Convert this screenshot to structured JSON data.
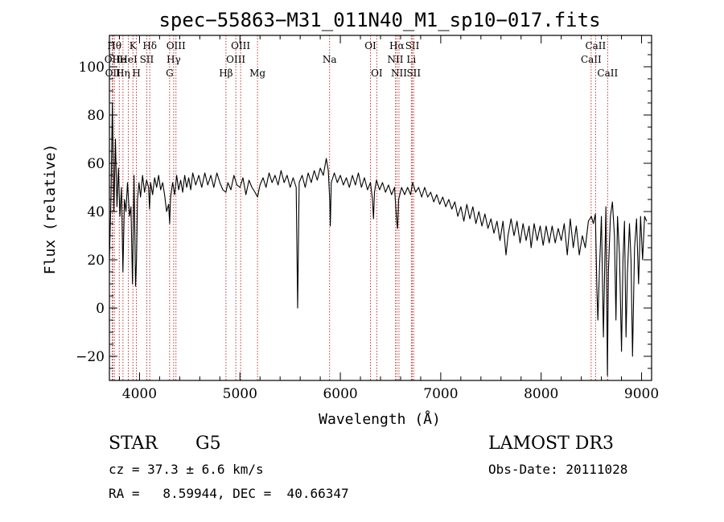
{
  "chart_data": {
    "type": "line",
    "title": "spec−55863−M31_011N40_M1_sp10−017.fits",
    "xlabel": "Wavelength (Å)",
    "ylabel": "Flux (relative)",
    "xlim": [
      3700,
      9100
    ],
    "ylim": [
      -30,
      113
    ],
    "xticks": [
      {
        "value": 4000,
        "label": "4000"
      },
      {
        "value": 5000,
        "label": "5000"
      },
      {
        "value": 6000,
        "label": "6000"
      },
      {
        "value": 7000,
        "label": "7000"
      },
      {
        "value": 8000,
        "label": "8000"
      },
      {
        "value": 9000,
        "label": "9000"
      }
    ],
    "yticks": [
      {
        "value": -20,
        "label": "−20"
      },
      {
        "value": 0,
        "label": "0"
      },
      {
        "value": 20,
        "label": "20"
      },
      {
        "value": 40,
        "label": "40"
      },
      {
        "value": 60,
        "label": "60"
      },
      {
        "value": 80,
        "label": "80"
      },
      {
        "value": 100,
        "label": "100"
      }
    ],
    "line_color": "#000000",
    "marker_color": "#b22222",
    "series": [
      {
        "points": [
          [
            3700,
            20
          ],
          [
            3715,
            45
          ],
          [
            3730,
            85
          ],
          [
            3745,
            40
          ],
          [
            3760,
            70
          ],
          [
            3775,
            42
          ],
          [
            3790,
            58
          ],
          [
            3805,
            38
          ],
          [
            3820,
            50
          ],
          [
            3835,
            15
          ],
          [
            3850,
            45
          ],
          [
            3865,
            40
          ],
          [
            3880,
            52
          ],
          [
            3900,
            38
          ],
          [
            3915,
            42
          ],
          [
            3930,
            10
          ],
          [
            3945,
            55
          ],
          [
            3960,
            9
          ],
          [
            3970,
            20
          ],
          [
            3980,
            45
          ],
          [
            3995,
            52
          ],
          [
            4010,
            46
          ],
          [
            4030,
            55
          ],
          [
            4050,
            48
          ],
          [
            4070,
            53
          ],
          [
            4090,
            50
          ],
          [
            4100,
            41
          ],
          [
            4110,
            52
          ],
          [
            4130,
            47
          ],
          [
            4150,
            54
          ],
          [
            4170,
            50
          ],
          [
            4190,
            55
          ],
          [
            4210,
            49
          ],
          [
            4230,
            52
          ],
          [
            4250,
            47
          ],
          [
            4270,
            40
          ],
          [
            4290,
            43
          ],
          [
            4300,
            35
          ],
          [
            4310,
            46
          ],
          [
            4330,
            52
          ],
          [
            4350,
            47
          ],
          [
            4370,
            55
          ],
          [
            4390,
            49
          ],
          [
            4410,
            53
          ],
          [
            4430,
            48
          ],
          [
            4450,
            55
          ],
          [
            4470,
            50
          ],
          [
            4490,
            54
          ],
          [
            4510,
            49
          ],
          [
            4530,
            56
          ],
          [
            4560,
            51
          ],
          [
            4590,
            55
          ],
          [
            4620,
            50
          ],
          [
            4650,
            56
          ],
          [
            4680,
            51
          ],
          [
            4710,
            55
          ],
          [
            4740,
            50
          ],
          [
            4770,
            56
          ],
          [
            4800,
            52
          ],
          [
            4830,
            49
          ],
          [
            4860,
            48
          ],
          [
            4880,
            52
          ],
          [
            4910,
            49
          ],
          [
            4940,
            55
          ],
          [
            4970,
            51
          ],
          [
            5000,
            50
          ],
          [
            5030,
            54
          ],
          [
            5060,
            47
          ],
          [
            5090,
            53
          ],
          [
            5120,
            50
          ],
          [
            5150,
            48
          ],
          [
            5175,
            46
          ],
          [
            5200,
            51
          ],
          [
            5230,
            54
          ],
          [
            5260,
            50
          ],
          [
            5290,
            56
          ],
          [
            5320,
            52
          ],
          [
            5350,
            55
          ],
          [
            5380,
            51
          ],
          [
            5410,
            57
          ],
          [
            5440,
            52
          ],
          [
            5470,
            55
          ],
          [
            5500,
            50
          ],
          [
            5530,
            54
          ],
          [
            5560,
            50
          ],
          [
            5575,
            0
          ],
          [
            5590,
            52
          ],
          [
            5620,
            55
          ],
          [
            5650,
            50
          ],
          [
            5680,
            56
          ],
          [
            5710,
            52
          ],
          [
            5740,
            57
          ],
          [
            5770,
            53
          ],
          [
            5800,
            58
          ],
          [
            5830,
            55
          ],
          [
            5860,
            62
          ],
          [
            5880,
            57
          ],
          [
            5895,
            44
          ],
          [
            5900,
            34
          ],
          [
            5910,
            52
          ],
          [
            5940,
            56
          ],
          [
            5970,
            52
          ],
          [
            6000,
            55
          ],
          [
            6030,
            51
          ],
          [
            6060,
            54
          ],
          [
            6090,
            50
          ],
          [
            6120,
            55
          ],
          [
            6150,
            51
          ],
          [
            6180,
            56
          ],
          [
            6210,
            50
          ],
          [
            6240,
            54
          ],
          [
            6270,
            49
          ],
          [
            6300,
            52
          ],
          [
            6320,
            45
          ],
          [
            6330,
            37
          ],
          [
            6340,
            48
          ],
          [
            6360,
            53
          ],
          [
            6390,
            49
          ],
          [
            6420,
            52
          ],
          [
            6450,
            48
          ],
          [
            6480,
            51
          ],
          [
            6510,
            47
          ],
          [
            6540,
            50
          ],
          [
            6560,
            36
          ],
          [
            6570,
            33
          ],
          [
            6580,
            45
          ],
          [
            6610,
            50
          ],
          [
            6640,
            47
          ],
          [
            6670,
            50
          ],
          [
            6700,
            47
          ],
          [
            6720,
            52
          ],
          [
            6750,
            48
          ],
          [
            6780,
            50
          ],
          [
            6810,
            46
          ],
          [
            6840,
            50
          ],
          [
            6870,
            46
          ],
          [
            6900,
            48
          ],
          [
            6930,
            44
          ],
          [
            6960,
            47
          ],
          [
            6990,
            43
          ],
          [
            7020,
            46
          ],
          [
            7050,
            42
          ],
          [
            7080,
            45
          ],
          [
            7110,
            41
          ],
          [
            7140,
            44
          ],
          [
            7170,
            38
          ],
          [
            7200,
            42
          ],
          [
            7230,
            36
          ],
          [
            7260,
            43
          ],
          [
            7290,
            37
          ],
          [
            7320,
            42
          ],
          [
            7350,
            35
          ],
          [
            7380,
            40
          ],
          [
            7410,
            34
          ],
          [
            7440,
            39
          ],
          [
            7470,
            33
          ],
          [
            7500,
            37
          ],
          [
            7530,
            31
          ],
          [
            7560,
            36
          ],
          [
            7590,
            28
          ],
          [
            7620,
            36
          ],
          [
            7650,
            22
          ],
          [
            7670,
            30
          ],
          [
            7700,
            37
          ],
          [
            7730,
            30
          ],
          [
            7760,
            36
          ],
          [
            7790,
            27
          ],
          [
            7820,
            35
          ],
          [
            7850,
            28
          ],
          [
            7880,
            34
          ],
          [
            7900,
            25
          ],
          [
            7930,
            35
          ],
          [
            7960,
            28
          ],
          [
            7990,
            34
          ],
          [
            8020,
            26
          ],
          [
            8050,
            34
          ],
          [
            8080,
            27
          ],
          [
            8110,
            34
          ],
          [
            8140,
            27
          ],
          [
            8170,
            33
          ],
          [
            8200,
            28
          ],
          [
            8230,
            35
          ],
          [
            8260,
            22
          ],
          [
            8290,
            37
          ],
          [
            8320,
            25
          ],
          [
            8350,
            34
          ],
          [
            8380,
            22
          ],
          [
            8410,
            30
          ],
          [
            8440,
            25
          ],
          [
            8470,
            36
          ],
          [
            8500,
            38
          ],
          [
            8520,
            35
          ],
          [
            8540,
            39
          ],
          [
            8555,
            8
          ],
          [
            8565,
            -5
          ],
          [
            8580,
            15
          ],
          [
            8600,
            38
          ],
          [
            8620,
            -12
          ],
          [
            8630,
            10
          ],
          [
            8645,
            42
          ],
          [
            8660,
            -28
          ],
          [
            8670,
            15
          ],
          [
            8690,
            38
          ],
          [
            8710,
            44
          ],
          [
            8730,
            30
          ],
          [
            8745,
            -5
          ],
          [
            8760,
            38
          ],
          [
            8780,
            22
          ],
          [
            8800,
            -18
          ],
          [
            8815,
            20
          ],
          [
            8830,
            36
          ],
          [
            8845,
            -12
          ],
          [
            8860,
            15
          ],
          [
            8880,
            35
          ],
          [
            8895,
            20
          ],
          [
            8910,
            -20
          ],
          [
            8930,
            25
          ],
          [
            8950,
            37
          ],
          [
            8970,
            10
          ],
          [
            8990,
            38
          ],
          [
            9010,
            20
          ],
          [
            9030,
            38
          ],
          [
            9050,
            36
          ]
        ]
      }
    ],
    "line_markers": [
      {
        "wl": 3727,
        "label": "OII",
        "row": 2
      },
      {
        "wl": 3734,
        "label": "OII",
        "row": 3
      },
      {
        "wl": 3750,
        "label": "Hθ",
        "row": 1
      },
      {
        "wl": 3798,
        "label": "He",
        "row": 2
      },
      {
        "wl": 3835,
        "label": "Hη",
        "row": 3
      },
      {
        "wl": 3889,
        "label": "HeI",
        "row": 2
      },
      {
        "wl": 3934,
        "label": "K",
        "row": 1
      },
      {
        "wl": 3969,
        "label": "H",
        "row": 3
      },
      {
        "wl": 4072,
        "label": "SII",
        "row": 2
      },
      {
        "wl": 4102,
        "label": "Hδ",
        "row": 1
      },
      {
        "wl": 4300,
        "label": "G",
        "row": 3
      },
      {
        "wl": 4340,
        "label": "Hγ",
        "row": 2
      },
      {
        "wl": 4363,
        "label": "OIII",
        "row": 1
      },
      {
        "wl": 4861,
        "label": "Hβ",
        "row": 3
      },
      {
        "wl": 4959,
        "label": "OIII",
        "row": 2
      },
      {
        "wl": 5007,
        "label": "OIII",
        "row": 1
      },
      {
        "wl": 5175,
        "label": "Mg",
        "row": 3
      },
      {
        "wl": 5893,
        "label": "Na",
        "row": 2
      },
      {
        "wl": 6300,
        "label": "OI",
        "row": 1
      },
      {
        "wl": 6363,
        "label": "OI",
        "row": 3
      },
      {
        "wl": 6548,
        "label": "NII",
        "row": 2
      },
      {
        "wl": 6563,
        "label": "Hα",
        "row": 1
      },
      {
        "wl": 6584,
        "label": "NII",
        "row": 3
      },
      {
        "wl": 6707,
        "label": "Li",
        "row": 2
      },
      {
        "wl": 6717,
        "label": "SII",
        "row": 1
      },
      {
        "wl": 6731,
        "label": "SII",
        "row": 3
      },
      {
        "wl": 8498,
        "label": "CaII",
        "row": 2
      },
      {
        "wl": 8542,
        "label": "CaII",
        "row": 1
      },
      {
        "wl": 8662,
        "label": "CaII",
        "row": 3
      }
    ]
  },
  "info": {
    "class": "STAR",
    "subclass": "G5",
    "survey": "LAMOST DR3",
    "cz": "cz = 37.3 ± 6.6 km/s",
    "obs_date": "Obs-Date: 20111028",
    "coords": "RA =   8.59944, DEC =  40.66347"
  }
}
